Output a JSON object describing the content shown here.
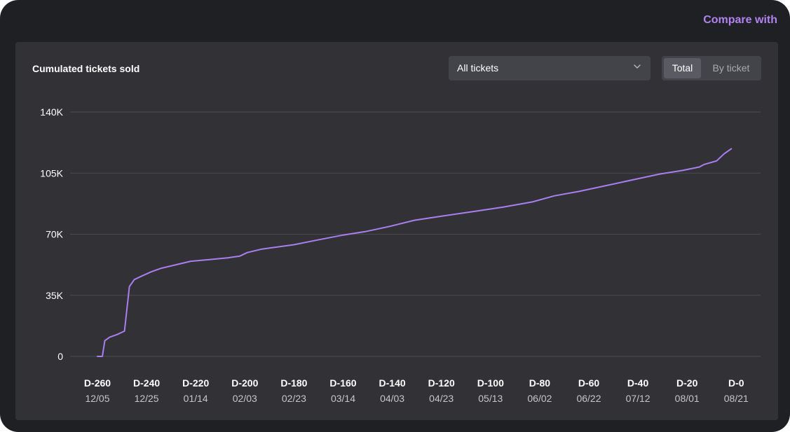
{
  "header": {
    "compare_label": "Compare with"
  },
  "card": {
    "title": "Cumulated tickets sold",
    "select": {
      "value": "All tickets",
      "icon": "chevron-down-icon"
    },
    "toggle": {
      "total_label": "Total",
      "by_ticket_label": "By ticket",
      "active": "Total"
    }
  },
  "colors": {
    "line": "#a97ff0",
    "accent": "#b083f0",
    "grid": "#4a4b50"
  },
  "chart_data": {
    "type": "line",
    "title": "Cumulated tickets sold",
    "y_ticks": [
      "0",
      "35K",
      "70K",
      "105K",
      "140K"
    ],
    "ylim": [
      0,
      140000
    ],
    "x_ticks": [
      {
        "d": "D-260",
        "date": "12/05"
      },
      {
        "d": "D-240",
        "date": "12/25"
      },
      {
        "d": "D-220",
        "date": "01/14"
      },
      {
        "d": "D-200",
        "date": "02/03"
      },
      {
        "d": "D-180",
        "date": "02/23"
      },
      {
        "d": "D-160",
        "date": "03/14"
      },
      {
        "d": "D-140",
        "date": "04/03"
      },
      {
        "d": "D-120",
        "date": "04/23"
      },
      {
        "d": "D-100",
        "date": "05/13"
      },
      {
        "d": "D-80",
        "date": "06/02"
      },
      {
        "d": "D-60",
        "date": "06/22"
      },
      {
        "d": "D-40",
        "date": "07/12"
      },
      {
        "d": "D-20",
        "date": "08/01"
      },
      {
        "d": "D-0",
        "date": "08/21"
      }
    ],
    "series": [
      {
        "x": [
          "12/05",
          "12/07",
          "12/08",
          "12/10",
          "12/13",
          "12/16",
          "12/18",
          "12/19",
          "12/20",
          "12/23",
          "12/27",
          "12/31",
          "01/06",
          "01/12",
          "01/20",
          "01/27",
          "02/01",
          "02/04",
          "02/10",
          "02/23",
          "03/04",
          "03/15",
          "03/24",
          "04/03",
          "04/13",
          "04/25",
          "05/07",
          "05/19",
          "05/31",
          "06/09",
          "06/19",
          "06/29",
          "07/12",
          "07/22",
          "07/31",
          "08/07",
          "08/09",
          "08/14",
          "08/17",
          "08/20"
        ],
        "y": [
          0,
          0,
          9000,
          11000,
          12500,
          14500,
          40000,
          42000,
          44000,
          46000,
          48500,
          50500,
          52500,
          54500,
          55500,
          56500,
          57500,
          59500,
          61500,
          64000,
          66500,
          69500,
          71500,
          74500,
          78000,
          80500,
          83000,
          85500,
          88500,
          92000,
          94500,
          97500,
          101500,
          104500,
          106500,
          108500,
          110000,
          112000,
          116000,
          119000
        ]
      }
    ]
  }
}
